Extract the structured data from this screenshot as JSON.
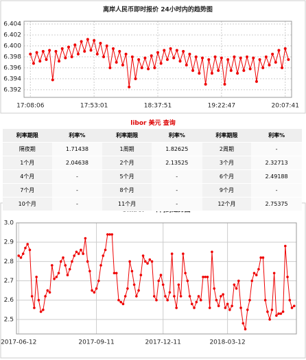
{
  "chart_data": [
    {
      "type": "line",
      "title": "离岸人民币即时报价 24小时内的趋势图",
      "color": "#ee0000",
      "grid": true,
      "values": [
        6.3985,
        6.3968,
        6.3988,
        6.3972,
        6.399,
        6.3975,
        6.3992,
        6.3938,
        6.399,
        6.3972,
        6.3995,
        6.3978,
        6.3998,
        6.398,
        6.4002,
        6.3985,
        6.4008,
        6.399,
        6.4012,
        6.3992,
        6.401,
        6.3985,
        6.4005,
        6.398,
        6.4,
        6.396,
        6.3995,
        6.397,
        6.399,
        6.3965,
        6.3985,
        6.3925,
        6.398,
        6.394,
        6.3975,
        6.396,
        6.3978,
        6.3958,
        6.3982,
        6.396,
        6.3988,
        6.3968,
        6.3992,
        6.3975,
        6.3995,
        6.3978,
        6.3992,
        6.3972,
        6.399,
        6.3965,
        6.3985,
        6.3955,
        6.398,
        6.395,
        6.3978,
        6.393,
        6.3975,
        6.395,
        6.398,
        6.3955,
        6.3978,
        6.393,
        6.3975,
        6.3955,
        6.398,
        6.395,
        6.3978,
        6.3955,
        6.398,
        6.3958,
        6.3978,
        6.3935,
        6.3975,
        6.396,
        6.398,
        6.3965,
        6.3985,
        6.397,
        6.3992,
        6.396,
        6.3995,
        6.3975
      ],
      "xlim": [
        -2,
        82
      ],
      "xticks": [
        {
          "value": 0,
          "label": "17:08:06"
        },
        {
          "value": 20,
          "label": "17:53:01"
        },
        {
          "value": 40,
          "label": "18:37:51"
        },
        {
          "value": 60,
          "label": "19:22:47"
        },
        {
          "value": 80,
          "label": "20:07:41"
        }
      ],
      "ylim": [
        6.3906,
        6.4045
      ],
      "yticks": [
        6.392,
        6.394,
        6.396,
        6.398,
        {
          "value": 6.4,
          "label": "6.400"
        },
        6.402,
        6.404
      ]
    },
    {
      "type": "line",
      "title": "Shibor 一年内的趋势图",
      "color": "#ee0000",
      "grid": true,
      "values": [
        2.83,
        2.82,
        2.84,
        2.87,
        2.89,
        2.86,
        2.62,
        2.56,
        2.72,
        2.6,
        2.54,
        2.55,
        2.62,
        2.65,
        2.64,
        2.78,
        2.71,
        2.72,
        2.74,
        2.8,
        2.82,
        2.78,
        2.73,
        2.76,
        2.8,
        2.83,
        2.85,
        2.84,
        2.86,
        2.84,
        2.92,
        2.8,
        2.75,
        2.65,
        2.64,
        2.66,
        2.7,
        2.78,
        2.83,
        2.86,
        2.94,
        2.94,
        2.94,
        2.74,
        2.74,
        2.6,
        2.59,
        2.58,
        2.62,
        2.66,
        2.8,
        2.75,
        2.68,
        2.62,
        2.65,
        2.73,
        2.83,
        2.8,
        2.79,
        2.81,
        2.8,
        2.62,
        2.6,
        2.7,
        2.73,
        2.68,
        2.62,
        2.6,
        2.64,
        2.84,
        2.62,
        2.56,
        2.68,
        2.62,
        2.84,
        2.74,
        2.7,
        2.62,
        2.58,
        2.56,
        2.59,
        2.62,
        2.6,
        2.72,
        2.72,
        2.72,
        2.56,
        2.85,
        2.66,
        2.6,
        2.57,
        2.62,
        2.63,
        2.56,
        2.58,
        2.55,
        2.57,
        2.68,
        2.66,
        2.7,
        2.56,
        2.48,
        2.45,
        2.55,
        2.6,
        2.7,
        2.74,
        2.73,
        2.76,
        2.82,
        2.82,
        2.6,
        2.54,
        2.5,
        2.55,
        2.74,
        2.52,
        2.53,
        2.53,
        2.54,
        2.88,
        2.72,
        2.6,
        2.56,
        2.57
      ],
      "xlim": [
        -1,
        125
      ],
      "xticks": [
        {
          "value": 0,
          "label": "2017-06-12"
        },
        {
          "value": 35,
          "label": "2017-09-11"
        },
        {
          "value": 65,
          "label": "2017-12-11"
        },
        {
          "value": 94,
          "label": "2018-03-12"
        }
      ],
      "ylim": [
        2.425,
        3.0
      ],
      "yticks": [
        2.5,
        2.6,
        2.7,
        2.8,
        2.9,
        {
          "value": 3,
          "label": "3.0"
        }
      ]
    }
  ],
  "table": {
    "title": "libor 美元 查询",
    "header": [
      "利率期限",
      "利率%",
      "利率期限",
      "利率%",
      "利率期限",
      "利率%"
    ],
    "rows": [
      [
        "隔夜期",
        "1.71438",
        "1周期",
        "1.82625",
        "2周期",
        "-"
      ],
      [
        "1个月",
        "2.04638",
        "2个月",
        "2.13525",
        "3个月",
        "2.32713"
      ],
      [
        "4个月",
        "-",
        "5个月",
        "-",
        "6个月",
        "2.49188"
      ],
      [
        "7个月",
        "-",
        "8个月",
        "-",
        "9个月",
        "-"
      ],
      [
        "10个月",
        "-",
        "11个月",
        "-",
        "12个月",
        "2.75375"
      ]
    ]
  }
}
